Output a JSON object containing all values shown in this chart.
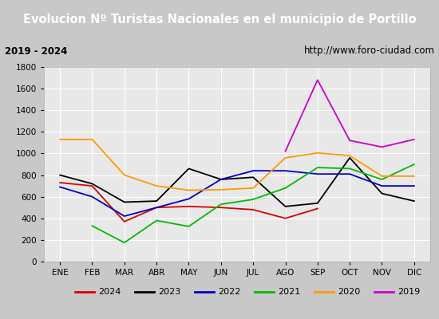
{
  "title": "Evolucion Nº Turistas Nacionales en el municipio de Portillo",
  "subtitle_left": "2019 - 2024",
  "subtitle_right": "http://www.foro-ciudad.com",
  "months": [
    "ENE",
    "FEB",
    "MAR",
    "ABR",
    "MAY",
    "JUN",
    "JUL",
    "AGO",
    "SEP",
    "OCT",
    "NOV",
    "DIC"
  ],
  "series_2024": [
    730,
    700,
    370,
    500,
    510,
    500,
    480,
    400,
    490,
    null,
    null,
    null
  ],
  "series_2023": [
    800,
    720,
    550,
    560,
    860,
    760,
    780,
    510,
    540,
    960,
    630,
    560
  ],
  "series_2022": [
    690,
    600,
    420,
    500,
    580,
    760,
    840,
    840,
    810,
    810,
    700,
    700
  ],
  "series_2021": [
    null,
    330,
    175,
    380,
    325,
    530,
    575,
    680,
    870,
    860,
    760,
    900
  ],
  "series_2020": [
    1130,
    1130,
    800,
    700,
    660,
    665,
    680,
    960,
    1005,
    980,
    790,
    790
  ],
  "series_2019": [
    null,
    null,
    null,
    null,
    null,
    null,
    null,
    1020,
    1680,
    1120,
    1060,
    1130
  ],
  "colors": {
    "2024": "#dd0000",
    "2023": "#000000",
    "2022": "#0000cc",
    "2021": "#00bb00",
    "2020": "#ff9900",
    "2019": "#cc00cc"
  },
  "ylim": [
    0,
    1800
  ],
  "yticks": [
    0,
    200,
    400,
    600,
    800,
    1000,
    1200,
    1400,
    1600,
    1800
  ],
  "outer_bg": "#c8c8c8",
  "plot_bg": "#e8e8e8",
  "title_bg": "#4472c4",
  "title_fg": "#ffffff",
  "subtitle_bg": "#d8d8d8",
  "grid_color": "#ffffff",
  "title_fontsize": 10.5,
  "subtitle_fontsize": 8.5,
  "tick_fontsize": 7.5,
  "legend_fontsize": 8
}
